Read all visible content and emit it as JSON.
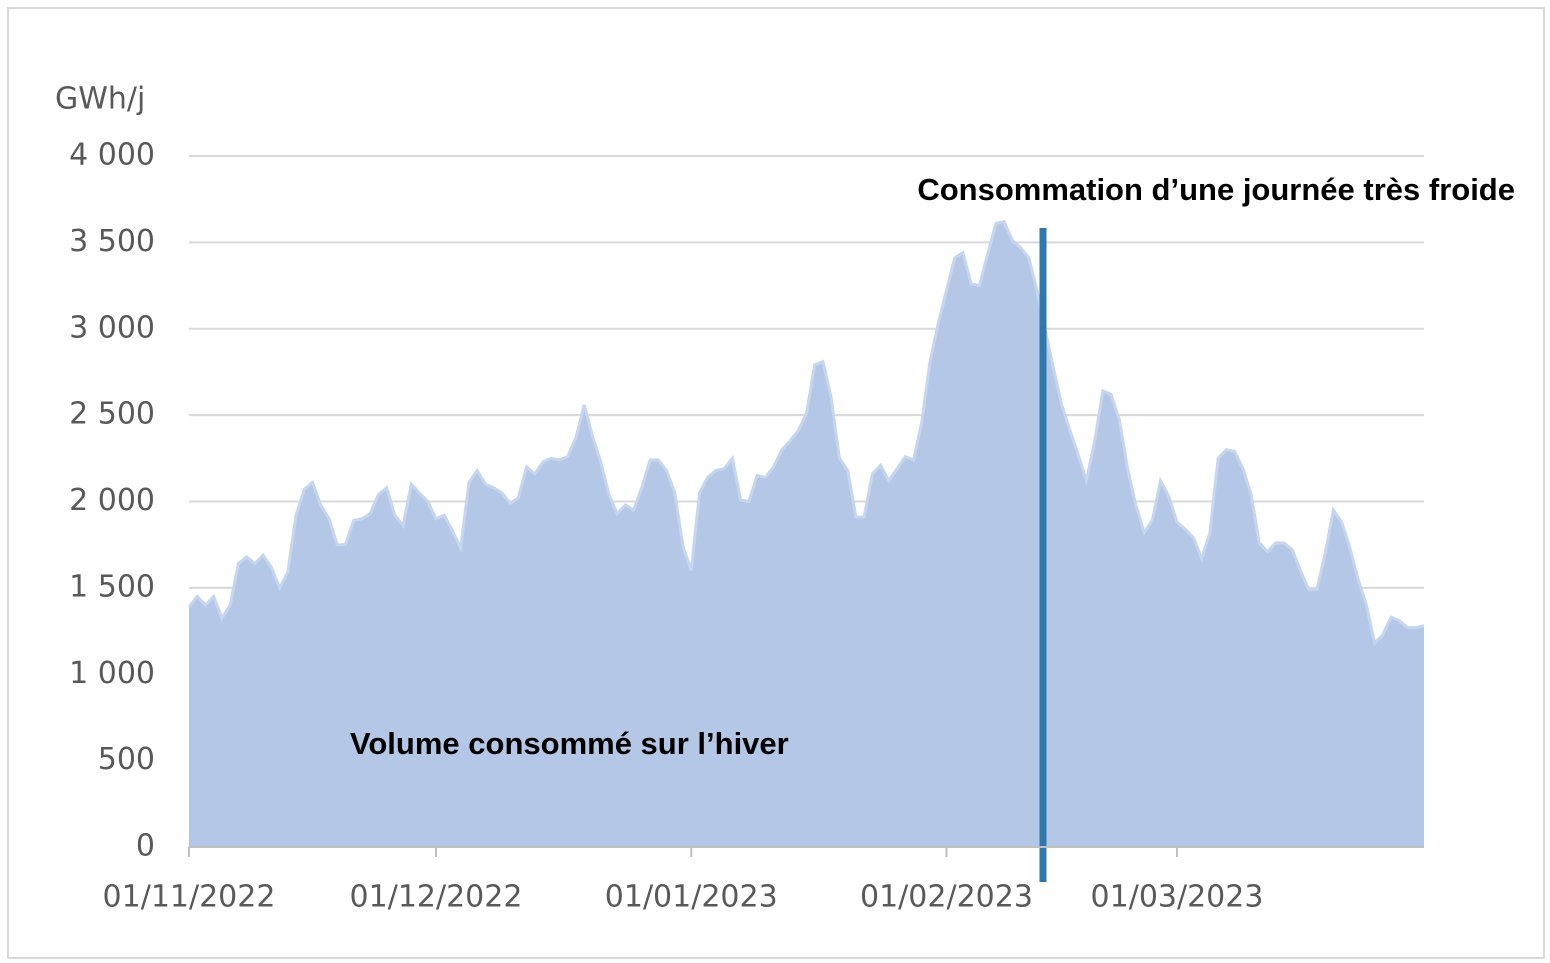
{
  "chart_data": {
    "type": "area",
    "y_label": "GWh/j",
    "annotations": [
      "Consommation d’une journée très froide",
      "Volume consommé sur l’hiver"
    ],
    "color": "#b4c7e7",
    "line_color": "#c6d6ee",
    "marker_color": "#2e78ad",
    "grid": true,
    "ylim": [
      0,
      4000
    ],
    "yticks": [
      0,
      500,
      {
        "value": 1000,
        "label": "1 000"
      },
      {
        "value": 1500,
        "label": "1 500"
      },
      {
        "value": 2000,
        "label": "2 000"
      },
      {
        "value": 2500,
        "label": "2 500"
      },
      {
        "value": 3000,
        "label": "3 000"
      },
      {
        "value": 3500,
        "label": "3 500"
      },
      {
        "value": 4000,
        "label": "4 000"
      }
    ],
    "xlim": [
      "01/11/2022",
      "31/03/2023"
    ],
    "xticks": [
      "01/11/2022",
      "01/12/2022",
      "01/01/2023",
      "01/02/2023",
      "01/03/2023"
    ],
    "x": [
      "01/11/2022",
      "02/11/2022",
      "03/11/2022",
      "04/11/2022",
      "05/11/2022",
      "06/11/2022",
      "07/11/2022",
      "08/11/2022",
      "09/11/2022",
      "10/11/2022",
      "11/11/2022",
      "12/11/2022",
      "13/11/2022",
      "14/11/2022",
      "15/11/2022",
      "16/11/2022",
      "17/11/2022",
      "18/11/2022",
      "19/11/2022",
      "20/11/2022",
      "21/11/2022",
      "22/11/2022",
      "23/11/2022",
      "24/11/2022",
      "25/11/2022",
      "26/11/2022",
      "27/11/2022",
      "28/11/2022",
      "29/11/2022",
      "30/11/2022",
      "01/12/2022",
      "02/12/2022",
      "03/12/2022",
      "04/12/2022",
      "05/12/2022",
      "06/12/2022",
      "07/12/2022",
      "08/12/2022",
      "09/12/2022",
      "10/12/2022",
      "11/12/2022",
      "12/12/2022",
      "13/12/2022",
      "14/12/2022",
      "15/12/2022",
      "16/12/2022",
      "17/12/2022",
      "18/12/2022",
      "19/12/2022",
      "20/12/2022",
      "21/12/2022",
      "22/12/2022",
      "23/12/2022",
      "24/12/2022",
      "25/12/2022",
      "26/12/2022",
      "27/12/2022",
      "28/12/2022",
      "29/12/2022",
      "30/12/2022",
      "31/12/2022",
      "01/01/2023",
      "02/01/2023",
      "03/01/2023",
      "04/01/2023",
      "05/01/2023",
      "06/01/2023",
      "07/01/2023",
      "08/01/2023",
      "09/01/2023",
      "10/01/2023",
      "11/01/2023",
      "12/01/2023",
      "13/01/2023",
      "14/01/2023",
      "15/01/2023",
      "16/01/2023",
      "17/01/2023",
      "18/01/2023",
      "19/01/2023",
      "20/01/2023",
      "21/01/2023",
      "22/01/2023",
      "23/01/2023",
      "24/01/2023",
      "25/01/2023",
      "26/01/2023",
      "27/01/2023",
      "28/01/2023",
      "29/01/2023",
      "30/01/2023",
      "31/01/2023",
      "01/02/2023",
      "02/02/2023",
      "03/02/2023",
      "04/02/2023",
      "05/02/2023",
      "06/02/2023",
      "07/02/2023",
      "08/02/2023",
      "09/02/2023",
      "10/02/2023",
      "11/02/2023",
      "12/02/2023",
      "13/02/2023",
      "14/02/2023",
      "15/02/2023",
      "16/02/2023",
      "17/02/2023",
      "18/02/2023",
      "19/02/2023",
      "20/02/2023",
      "21/02/2023",
      "22/02/2023",
      "23/02/2023",
      "24/02/2023",
      "25/02/2023",
      "26/02/2023",
      "27/02/2023",
      "28/02/2023",
      "01/03/2023",
      "02/03/2023",
      "03/03/2023",
      "04/03/2023",
      "05/03/2023",
      "06/03/2023",
      "07/03/2023",
      "08/03/2023",
      "09/03/2023",
      "10/03/2023",
      "11/03/2023",
      "12/03/2023",
      "13/03/2023",
      "14/03/2023",
      "15/03/2023",
      "16/03/2023",
      "17/03/2023",
      "18/03/2023",
      "19/03/2023",
      "20/03/2023",
      "21/03/2023",
      "22/03/2023",
      "23/03/2023",
      "24/03/2023",
      "25/03/2023",
      "26/03/2023",
      "27/03/2023",
      "28/03/2023",
      "29/03/2023",
      "30/03/2023",
      "31/03/2023"
    ],
    "values": [
      1390,
      1450,
      1400,
      1450,
      1325,
      1400,
      1640,
      1680,
      1640,
      1690,
      1620,
      1500,
      1590,
      1920,
      2070,
      2110,
      1980,
      1900,
      1750,
      1750,
      1890,
      1900,
      1930,
      2040,
      2080,
      1920,
      1860,
      2100,
      2050,
      2000,
      1900,
      1920,
      1830,
      1730,
      2110,
      2180,
      2100,
      2080,
      2050,
      1990,
      2020,
      2200,
      2160,
      2230,
      2250,
      2240,
      2260,
      2370,
      2560,
      2380,
      2230,
      2040,
      1930,
      1980,
      1950,
      2080,
      2240,
      2240,
      2180,
      2050,
      1740,
      1600,
      2050,
      2140,
      2180,
      2190,
      2250,
      2010,
      2000,
      2150,
      2140,
      2200,
      2300,
      2350,
      2410,
      2510,
      2790,
      2810,
      2600,
      2250,
      2180,
      1910,
      1910,
      2160,
      2210,
      2120,
      2190,
      2260,
      2240,
      2460,
      2810,
      3030,
      3220,
      3410,
      3440,
      3260,
      3250,
      3430,
      3610,
      3620,
      3510,
      3470,
      3410,
      3220,
      2990,
      2770,
      2560,
      2410,
      2270,
      2120,
      2350,
      2640,
      2620,
      2470,
      2190,
      1980,
      1820,
      1890,
      2120,
      2030,
      1880,
      1840,
      1790,
      1670,
      1820,
      2250,
      2300,
      2290,
      2190,
      2040,
      1760,
      1710,
      1760,
      1760,
      1720,
      1600,
      1490,
      1490,
      1700,
      1950,
      1880,
      1730,
      1550,
      1400,
      1180,
      1230,
      1330,
      1310,
      1270,
      1270,
      1280
    ]
  }
}
